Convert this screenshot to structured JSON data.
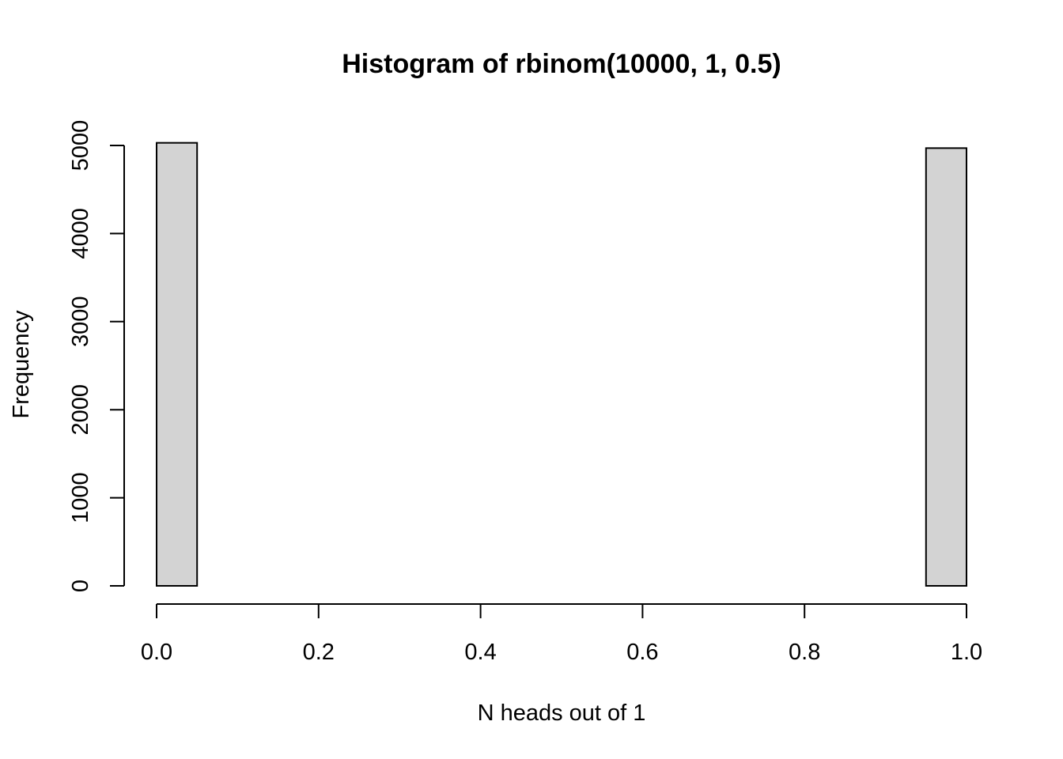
{
  "chart_data": {
    "type": "bar",
    "title": "Histogram of rbinom(10000, 1, 0.5)",
    "xlabel": "N heads out of 1",
    "ylabel": "Frequency",
    "xlim": [
      0,
      1
    ],
    "ylim": [
      0,
      5000
    ],
    "x_ticks": [
      0.0,
      0.2,
      0.4,
      0.6,
      0.8,
      1.0
    ],
    "x_tick_labels": [
      "0.0",
      "0.2",
      "0.4",
      "0.6",
      "0.8",
      "1.0"
    ],
    "y_ticks": [
      0,
      1000,
      2000,
      3000,
      4000,
      5000
    ],
    "y_tick_labels": [
      "0",
      "1000",
      "2000",
      "3000",
      "4000",
      "5000"
    ],
    "bins": [
      {
        "start": 0.0,
        "end": 0.05,
        "count": 5030
      },
      {
        "start": 0.05,
        "end": 0.1,
        "count": 0
      },
      {
        "start": 0.1,
        "end": 0.15,
        "count": 0
      },
      {
        "start": 0.15,
        "end": 0.2,
        "count": 0
      },
      {
        "start": 0.2,
        "end": 0.25,
        "count": 0
      },
      {
        "start": 0.25,
        "end": 0.3,
        "count": 0
      },
      {
        "start": 0.3,
        "end": 0.35,
        "count": 0
      },
      {
        "start": 0.35,
        "end": 0.4,
        "count": 0
      },
      {
        "start": 0.4,
        "end": 0.45,
        "count": 0
      },
      {
        "start": 0.45,
        "end": 0.5,
        "count": 0
      },
      {
        "start": 0.5,
        "end": 0.55,
        "count": 0
      },
      {
        "start": 0.55,
        "end": 0.6,
        "count": 0
      },
      {
        "start": 0.6,
        "end": 0.65,
        "count": 0
      },
      {
        "start": 0.65,
        "end": 0.7,
        "count": 0
      },
      {
        "start": 0.7,
        "end": 0.75,
        "count": 0
      },
      {
        "start": 0.75,
        "end": 0.8,
        "count": 0
      },
      {
        "start": 0.8,
        "end": 0.85,
        "count": 0
      },
      {
        "start": 0.85,
        "end": 0.9,
        "count": 0
      },
      {
        "start": 0.9,
        "end": 0.95,
        "count": 0
      },
      {
        "start": 0.95,
        "end": 1.0,
        "count": 4970
      }
    ],
    "bar_fill": "#d3d3d3",
    "bar_stroke": "#000000",
    "grid": false,
    "legend": "none"
  }
}
